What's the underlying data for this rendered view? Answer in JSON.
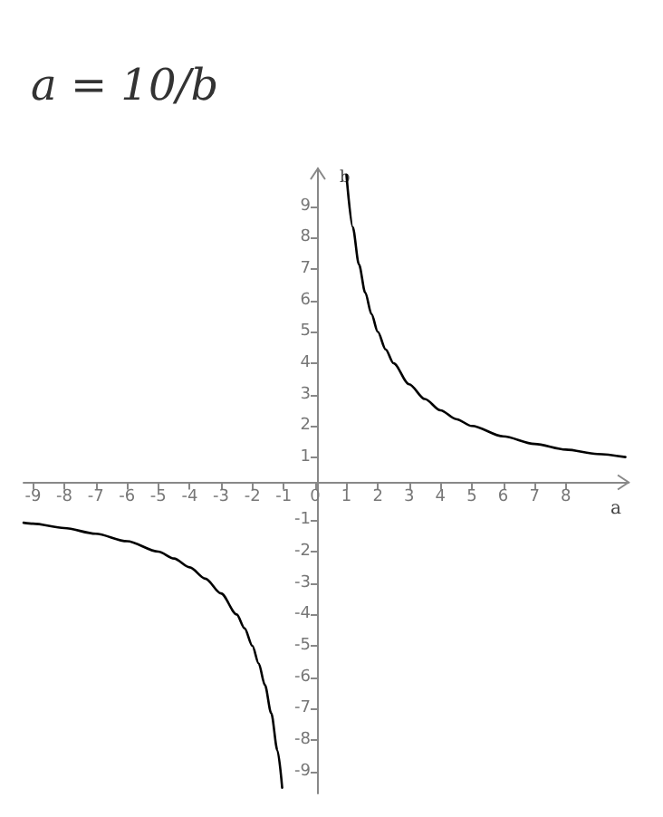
{
  "chart_data": {
    "type": "line",
    "title": "a = 10/b",
    "xlabel": "a",
    "ylabel": "b",
    "xlim": [
      -9.3,
      10
    ],
    "ylim": [
      -9.7,
      10.2
    ],
    "xticks": [
      -9,
      -8,
      -7,
      -6,
      -5,
      -4,
      -3,
      -2,
      -1,
      0,
      1,
      2,
      3,
      4,
      5,
      6,
      7,
      8
    ],
    "yticks": [
      -9,
      -8,
      -7,
      -6,
      -5,
      -4,
      -3,
      -2,
      -1,
      1,
      2,
      3,
      4,
      5,
      6,
      7,
      8,
      9
    ],
    "grid": false,
    "marker": "none",
    "line_style": "solid",
    "series": [
      {
        "color": "#000000",
        "x": [
          1,
          1.2,
          1.4,
          1.6,
          1.8,
          2,
          2.25,
          2.5,
          3,
          3.5,
          4,
          4.5,
          5,
          6,
          7,
          8,
          9,
          9.9
        ],
        "values": [
          10,
          8.33,
          7.14,
          6.25,
          5.56,
          5,
          4.44,
          4,
          3.33,
          2.86,
          2.5,
          2.22,
          2,
          1.67,
          1.43,
          1.25,
          1.11,
          1.01
        ]
      },
      {
        "color": "#000000",
        "x": [
          -9.3,
          -9,
          -8,
          -7,
          -6,
          -5,
          -4.5,
          -4,
          -3.5,
          -3,
          -2.5,
          -2.25,
          -2,
          -1.8,
          -1.6,
          -1.4,
          -1.2,
          -1.05
        ],
        "values": [
          -1.08,
          -1.11,
          -1.25,
          -1.43,
          -1.67,
          -2,
          -2.22,
          -2.5,
          -2.86,
          -3.33,
          -4,
          -4.44,
          -5,
          -5.56,
          -6.25,
          -7.14,
          -8.33,
          -9.52
        ]
      }
    ]
  }
}
